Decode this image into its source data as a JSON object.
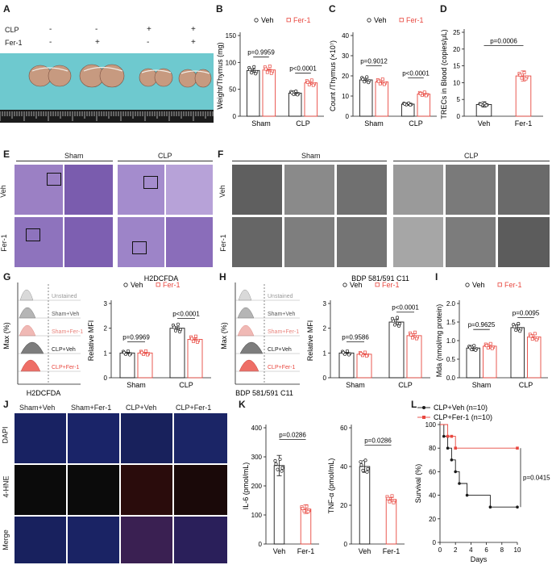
{
  "panel_letters": [
    "A",
    "B",
    "C",
    "D",
    "E",
    "F",
    "G",
    "H",
    "I",
    "J",
    "K",
    "L"
  ],
  "panel_a": {
    "rows": [
      {
        "label": "CLP",
        "marks": [
          "-",
          "-",
          "+",
          "+"
        ]
      },
      {
        "label": "Fer-1",
        "marks": [
          "-",
          "+",
          "-",
          "+"
        ]
      }
    ]
  },
  "panel_e": {
    "cols": [
      "Sham",
      "CLP"
    ],
    "rows": [
      "Veh",
      "Fer-1"
    ]
  },
  "panel_f": {
    "cols": [
      "Sham",
      "CLP"
    ],
    "rows": [
      "Veh",
      "Fer-1"
    ]
  },
  "panel_g": {
    "title": "H2DCFDA",
    "xlabel": "H2DCFDA",
    "ylabel": "Max (%)",
    "tracks": [
      "Unstained",
      "Sham+Veh",
      "Sham+Fer-1",
      "CLP+Veh",
      "CLP+Fer-1"
    ]
  },
  "panel_h": {
    "title": "BDP 581/591 C11",
    "xlabel": "BDP 581/591 C11",
    "ylabel": "Max (%)",
    "tracks": [
      "Unstained",
      "Sham+Veh",
      "Sham+Fer-1",
      "CLP+Veh",
      "CLP+Fer-1"
    ]
  },
  "panel_j": {
    "cols": [
      "Sham+Veh",
      "Sham+Fer-1",
      "CLP+Veh",
      "CLP+Fer-1"
    ],
    "rows": [
      "DAPI",
      "4-HNE",
      "Merge"
    ]
  },
  "colors": {
    "veh": "#1a1a1a",
    "fer": "#e8473f",
    "stain": "#8b6fb8",
    "em": "#6e6e6e",
    "dapi": "#141b48"
  },
  "chart_data": [
    {
      "id": "B",
      "type": "bar",
      "ylabel": "Weight/Thymus (mg)",
      "ylim": [
        0,
        150
      ],
      "yticks": [
        0,
        50,
        100,
        150
      ],
      "categories": [
        "Sham",
        "CLP"
      ],
      "series": [
        {
          "name": "Veh",
          "values": [
            85,
            43
          ],
          "sem": [
            3,
            4
          ]
        },
        {
          "name": "Fer-1",
          "values": [
            86,
            62
          ],
          "sem": [
            2,
            3
          ]
        }
      ],
      "legend": [
        "Veh",
        "Fer-1"
      ],
      "pvalues": [
        {
          "text": "p=0.9959",
          "group": 0,
          "y": 110
        },
        {
          "text": "p<0.0001",
          "group": 1,
          "y": 80
        }
      ]
    },
    {
      "id": "C",
      "type": "bar",
      "ylabel": "Count /Thymus (×10⁷)",
      "ylim": [
        0,
        40
      ],
      "yticks": [
        0,
        10,
        20,
        30,
        40
      ],
      "categories": [
        "Sham",
        "CLP"
      ],
      "series": [
        {
          "name": "Veh",
          "values": [
            18,
            6
          ],
          "sem": [
            0.8,
            0.6
          ]
        },
        {
          "name": "Fer-1",
          "values": [
            17,
            11
          ],
          "sem": [
            1.0,
            0.9
          ]
        }
      ],
      "legend": [
        "Veh",
        "Fer-1"
      ],
      "pvalues": [
        {
          "text": "p=0.9012",
          "group": 0,
          "y": 25
        },
        {
          "text": "p<0.0001",
          "group": 1,
          "y": 19
        }
      ]
    },
    {
      "id": "D",
      "type": "bar",
      "ylabel": "TRECs in Blood (copies/μL)",
      "ylim": [
        0,
        25
      ],
      "yticks": [
        0,
        5,
        10,
        15,
        20,
        25
      ],
      "categories": [
        "Veh",
        "Fer-1"
      ],
      "series": [
        {
          "name": "",
          "values": [
            3.5,
            12
          ],
          "sem": [
            0.8,
            1.5
          ]
        }
      ],
      "pvalues": [
        {
          "text": "p=0.0006",
          "group": -1,
          "y": 21
        }
      ]
    },
    {
      "id": "G",
      "type": "bar",
      "ylabel": "Relative MFI",
      "ylim": [
        0,
        3
      ],
      "yticks": [
        0,
        1,
        2,
        3
      ],
      "categories": [
        "Sham",
        "CLP"
      ],
      "series": [
        {
          "name": "Veh",
          "values": [
            1.0,
            2.0
          ],
          "sem": [
            0.03,
            0.06
          ]
        },
        {
          "name": "Fer-1",
          "values": [
            1.0,
            1.55
          ],
          "sem": [
            0.03,
            0.05
          ]
        }
      ],
      "legend": [
        "Veh",
        "Fer-1"
      ],
      "pvalues": [
        {
          "text": "p=0.9969",
          "group": 0,
          "y": 1.45
        },
        {
          "text": "p<0.0001",
          "group": 1,
          "y": 2.4
        }
      ]
    },
    {
      "id": "H",
      "type": "bar",
      "ylabel": "Relative MFI",
      "ylim": [
        0,
        3
      ],
      "yticks": [
        0,
        1,
        2,
        3
      ],
      "categories": [
        "Sham",
        "CLP"
      ],
      "series": [
        {
          "name": "Veh",
          "values": [
            1.0,
            2.25
          ],
          "sem": [
            0.03,
            0.1
          ]
        },
        {
          "name": "Fer-1",
          "values": [
            0.95,
            1.7
          ],
          "sem": [
            0.03,
            0.08
          ]
        }
      ],
      "legend": [
        "Veh",
        "Fer-1"
      ],
      "pvalues": [
        {
          "text": "p=0.9586",
          "group": 0,
          "y": 1.45
        },
        {
          "text": "p<0.0001",
          "group": 1,
          "y": 2.65
        }
      ]
    },
    {
      "id": "I",
      "type": "bar",
      "ylabel": "Mda (nmol/mg protein)",
      "ylim": [
        0,
        2.0
      ],
      "yticks": [
        0.0,
        0.5,
        1.0,
        1.5,
        2.0
      ],
      "categories": [
        "Sham",
        "CLP"
      ],
      "series": [
        {
          "name": "Veh",
          "values": [
            0.8,
            1.35
          ],
          "sem": [
            0.07,
            0.07
          ]
        },
        {
          "name": "Fer-1",
          "values": [
            0.85,
            1.1
          ],
          "sem": [
            0.06,
            0.06
          ]
        }
      ],
      "legend": [
        "Veh",
        "Fer-1"
      ],
      "pvalues": [
        {
          "text": "p=0.9625",
          "group": 0,
          "y": 1.3
        },
        {
          "text": "p=0.0095",
          "group": 1,
          "y": 1.62
        }
      ]
    },
    {
      "id": "K1",
      "type": "bar",
      "ylabel": "IL-6 (pmol/mL)",
      "ylim": [
        0,
        400
      ],
      "yticks": [
        0,
        100,
        200,
        300,
        400
      ],
      "categories": [
        "Veh",
        "Fer-1"
      ],
      "series": [
        {
          "name": "",
          "values": [
            270,
            120
          ],
          "sem": [
            35,
            15
          ]
        }
      ],
      "pvalues": [
        {
          "text": "p=0.0286",
          "group": -1,
          "y": 360
        }
      ]
    },
    {
      "id": "K2",
      "type": "bar",
      "ylabel": "TNF-α (pmol/mL)",
      "ylim": [
        0,
        60
      ],
      "yticks": [
        0,
        20,
        40,
        60
      ],
      "categories": [
        "Veh",
        "Fer-1"
      ],
      "series": [
        {
          "name": "",
          "values": [
            40,
            23
          ],
          "sem": [
            3,
            1
          ]
        }
      ],
      "pvalues": [
        {
          "text": "p=0.0286",
          "group": -1,
          "y": 51
        }
      ]
    },
    {
      "id": "L",
      "type": "line",
      "ylabel": "Survival (%)",
      "xlabel": "Days",
      "ylim": [
        0,
        100
      ],
      "yticks": [
        0,
        20,
        40,
        60,
        80,
        100
      ],
      "xlim": [
        0,
        10
      ],
      "xticks": [
        0,
        2,
        4,
        6,
        8,
        10
      ],
      "series": [
        {
          "name": "CLP+Veh (n=10)",
          "x": [
            0,
            0.5,
            1,
            1.5,
            2,
            2.5,
            3.5,
            6.5,
            10
          ],
          "y": [
            100,
            90,
            80,
            70,
            60,
            50,
            40,
            30,
            30
          ]
        },
        {
          "name": "CLP+Fer-1 (n=10)",
          "x": [
            0,
            1,
            1.5,
            2,
            10
          ],
          "y": [
            100,
            90,
            90,
            80,
            80
          ]
        }
      ],
      "pvalue": "p=0.0415"
    }
  ]
}
